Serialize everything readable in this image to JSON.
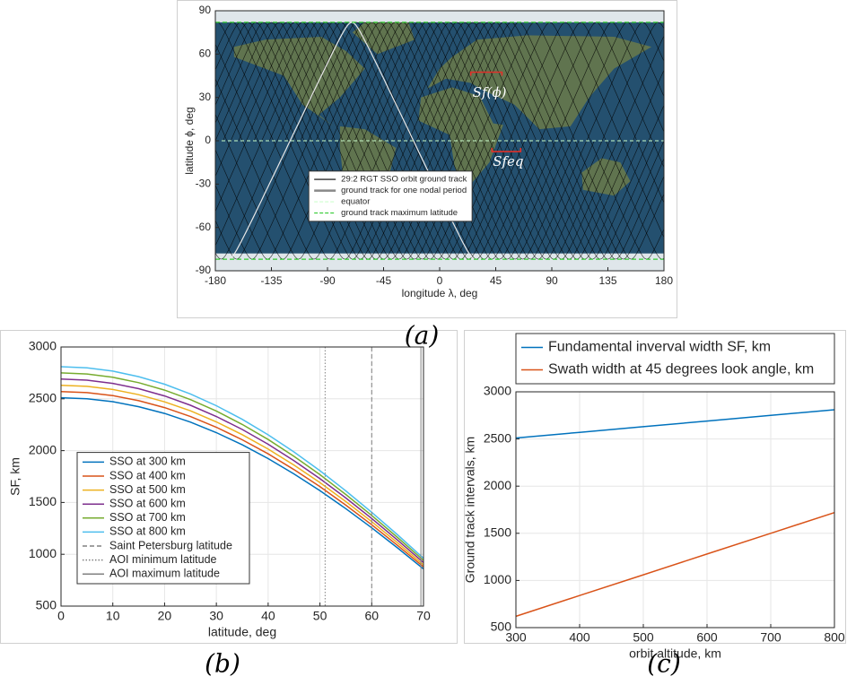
{
  "chart_data": [
    {
      "type": "map",
      "caption": "(a)",
      "xlabel": "longitude λ, deg",
      "ylabel": "latitude ϕ, deg",
      "xlim": [
        -180,
        180
      ],
      "xticks": [
        -180,
        -135,
        -90,
        -45,
        0,
        45,
        90,
        135,
        180
      ],
      "ylim": [
        -90,
        90
      ],
      "yticks": [
        -90,
        -60,
        -30,
        0,
        30,
        60,
        90
      ],
      "legend": "center",
      "series": [
        {
          "name": "29:2 RGT SSO orbit ground track",
          "color": "#000000"
        },
        {
          "name": "ground track for one nodal period",
          "color": "#e8e8e8"
        },
        {
          "name": "equator",
          "color": "#ccffcc",
          "values": [
            0
          ]
        },
        {
          "name": "ground track maximum latitude",
          "color": "#33cc33",
          "values": [
            82,
            -82
          ]
        }
      ],
      "annotations": [
        "Sf(ϕ)",
        "Sfeq"
      ]
    },
    {
      "type": "line",
      "caption": "(b)",
      "xlabel": "latitude, deg",
      "ylabel": "SF, km",
      "xlim": [
        0,
        70
      ],
      "xticks": [
        0,
        10,
        20,
        30,
        40,
        50,
        60,
        70
      ],
      "ylim": [
        500,
        3000
      ],
      "yticks": [
        500,
        1000,
        1500,
        2000,
        2500,
        3000
      ],
      "grid": true,
      "legend": "lower left",
      "x": [
        0,
        5,
        10,
        15,
        20,
        25,
        30,
        35,
        40,
        45,
        50,
        55,
        60,
        65,
        70
      ],
      "series": [
        {
          "name": "SSO at 300 km",
          "color": "#0072bd",
          "values": [
            2510,
            2500,
            2472,
            2424,
            2359,
            2275,
            2174,
            2056,
            1923,
            1775,
            1613,
            1440,
            1255,
            1061,
            858
          ]
        },
        {
          "name": "SSO at 400 km",
          "color": "#d95319",
          "values": [
            2570,
            2560,
            2531,
            2482,
            2415,
            2329,
            2226,
            2105,
            1969,
            1817,
            1652,
            1474,
            1285,
            1086,
            879
          ]
        },
        {
          "name": "SSO at 500 km",
          "color": "#edb120",
          "values": [
            2630,
            2620,
            2590,
            2540,
            2471,
            2384,
            2278,
            2154,
            2015,
            1860,
            1691,
            1509,
            1315,
            1111,
            899
          ]
        },
        {
          "name": "SSO at 600 km",
          "color": "#7e2f8e",
          "values": [
            2690,
            2680,
            2649,
            2598,
            2528,
            2438,
            2330,
            2204,
            2061,
            1902,
            1729,
            1543,
            1345,
            1137,
            920
          ]
        },
        {
          "name": "SSO at 700 km",
          "color": "#77ac30",
          "values": [
            2750,
            2740,
            2708,
            2656,
            2584,
            2492,
            2382,
            2253,
            2107,
            1945,
            1768,
            1577,
            1375,
            1162,
            941
          ]
        },
        {
          "name": "SSO at 800 km",
          "color": "#4dbeee",
          "values": [
            2810,
            2799,
            2767,
            2714,
            2641,
            2547,
            2433,
            2302,
            2152,
            1987,
            1806,
            1612,
            1405,
            1188,
            961
          ]
        },
        {
          "name": "Saint Petersburg latitude",
          "color": "#808080",
          "dash": "dashed",
          "xvalue": 60
        },
        {
          "name": "AOI minimum latitude",
          "color": "#808080",
          "dash": "dotted",
          "xvalue": 51
        },
        {
          "name": "AOI maximum latitude",
          "color": "#808080",
          "dash": "solid",
          "xvalue": 69.5
        }
      ]
    },
    {
      "type": "line",
      "caption": "(c)",
      "xlabel": "orbit altitude, km",
      "ylabel": "Ground track intervals, km",
      "xlim": [
        300,
        800
      ],
      "xticks": [
        300,
        400,
        500,
        600,
        700,
        800
      ],
      "ylim": [
        500,
        3000
      ],
      "yticks": [
        500,
        1000,
        1500,
        2000,
        2500,
        3000
      ],
      "grid": true,
      "legend": "top",
      "x": [
        300,
        400,
        500,
        600,
        700,
        800
      ],
      "series": [
        {
          "name": "Fundamental inverval width SF, km",
          "color": "#0072bd",
          "values": [
            2510,
            2570,
            2630,
            2690,
            2750,
            2810
          ]
        },
        {
          "name": "Swath width at 45 degrees look angle, km",
          "color": "#d95319",
          "values": [
            620,
            840,
            1060,
            1280,
            1500,
            1720
          ]
        }
      ]
    }
  ]
}
